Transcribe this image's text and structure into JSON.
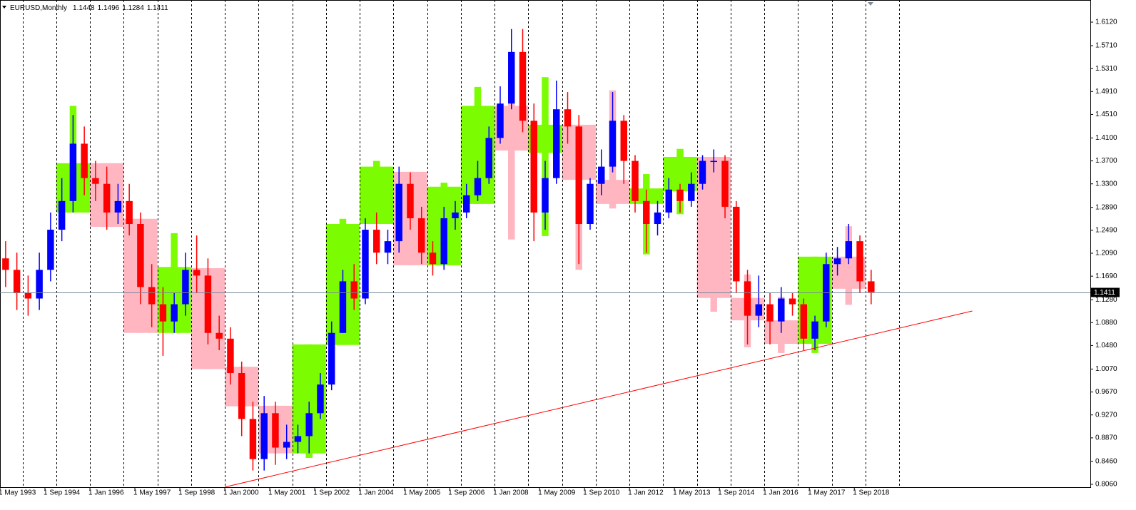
{
  "chart_data": {
    "type": "candlestick",
    "header": {
      "symbol": "EURUSD,Monthly",
      "open": 1.1448,
      "high": 1.1496,
      "low": 1.1284,
      "close": 1.1411
    },
    "current_price": 1.1411,
    "xlim": [
      "1 May 1993",
      "1 Sep 2025"
    ],
    "ylim": [
      0.801,
      1.6506
    ],
    "xticks": [
      "1 May 1993",
      "1 Sep 1994",
      "1 Jan 1996",
      "1 May 1997",
      "1 Sep 1998",
      "1 Jan 2000",
      "1 May 2001",
      "1 Sep 2002",
      "1 Jan 2004",
      "1 May 2005",
      "1 Sep 2006",
      "1 Jan 2008",
      "1 May 2009",
      "1 Sep 2010",
      "1 Jan 2012",
      "1 May 2013",
      "1 Sep 2014",
      "1 Jan 2016",
      "1 May 2017",
      "1 Sep 2018"
    ],
    "yticks": [
      {
        "value": 1.612,
        "label": "1.6120"
      },
      {
        "value": 1.571,
        "label": "1.5710"
      },
      {
        "value": 1.531,
        "label": "1.5310"
      },
      {
        "value": 1.491,
        "label": "1.4910"
      },
      {
        "value": 1.451,
        "label": "1.4510"
      },
      {
        "value": 1.41,
        "label": "1.4100"
      },
      {
        "value": 1.37,
        "label": "1.3700"
      },
      {
        "value": 1.33,
        "label": "1.3300"
      },
      {
        "value": 1.289,
        "label": "1.2890"
      },
      {
        "value": 1.249,
        "label": "1.2490"
      },
      {
        "value": 1.209,
        "label": "1.2090"
      },
      {
        "value": 1.169,
        "label": "1.1690"
      },
      {
        "value": 1.128,
        "label": "1.1280"
      },
      {
        "value": 1.088,
        "label": "1.0880"
      },
      {
        "value": 1.048,
        "label": "1.0480"
      },
      {
        "value": 1.007,
        "label": "1.0070"
      },
      {
        "value": 0.967,
        "label": "0.9670"
      },
      {
        "value": 0.927,
        "label": "0.9270"
      },
      {
        "value": 0.887,
        "label": "0.8870"
      },
      {
        "value": 0.846,
        "label": "0.8460"
      },
      {
        "value": 0.806,
        "label": "0.8060"
      }
    ],
    "period_separators": "yearly",
    "up_color": "#0000ff",
    "down_color": "#ff0000",
    "candles": {
      "x": [
        "1 May 1993",
        "1 Sep 1993",
        "1 Jan 1994",
        "1 May 1994",
        "1 Sep 1994",
        "1 Jan 1995",
        "1 May 1995",
        "1 Sep 1995",
        "1 Jan 1996",
        "1 May 1996",
        "1 Sep 1996",
        "1 Jan 1997",
        "1 May 1997",
        "1 Sep 1997",
        "1 Jan 1998",
        "1 May 1998",
        "1 Sep 1998",
        "1 Jan 1999",
        "1 May 1999",
        "1 Sep 1999",
        "1 Jan 2000",
        "1 May 2000",
        "1 Sep 2000",
        "1 Jan 2001",
        "1 May 2001",
        "1 Sep 2001",
        "1 Jan 2002",
        "1 May 2002",
        "1 Sep 2002",
        "1 Jan 2003",
        "1 May 2003",
        "1 Sep 2003",
        "1 Jan 2004",
        "1 May 2004",
        "1 Sep 2004",
        "1 Jan 2005",
        "1 May 2005",
        "1 Sep 2005",
        "1 Jan 2006",
        "1 May 2006",
        "1 Sep 2006",
        "1 Jan 2007",
        "1 May 2007",
        "1 Sep 2007",
        "1 Jan 2008",
        "1 May 2008",
        "1 Sep 2008",
        "1 Jan 2009",
        "1 May 2009",
        "1 Sep 2009",
        "1 Jan 2010",
        "1 May 2010",
        "1 Sep 2010",
        "1 Jan 2011",
        "1 May 2011",
        "1 Sep 2011",
        "1 Jan 2012",
        "1 May 2012",
        "1 Sep 2012",
        "1 Jan 2013",
        "1 May 2013",
        "1 Sep 2013",
        "1 Jan 2014",
        "1 May 2014",
        "1 Sep 2014",
        "1 Jan 2015",
        "1 May 2015",
        "1 Sep 2015",
        "1 Jan 2016",
        "1 May 2016",
        "1 Sep 2016",
        "1 Jan 2017",
        "1 May 2017",
        "1 Sep 2017",
        "1 Jan 2018",
        "1 May 2018",
        "1 Sep 2018",
        "1 Jan 2019"
      ],
      "open": [
        1.2,
        1.18,
        1.14,
        1.13,
        1.18,
        1.25,
        1.3,
        1.4,
        1.34,
        1.33,
        1.28,
        1.3,
        1.26,
        1.15,
        1.12,
        1.09,
        1.12,
        1.18,
        1.17,
        1.07,
        1.06,
        1.0,
        0.92,
        0.85,
        0.93,
        0.87,
        0.88,
        0.89,
        0.93,
        0.98,
        1.07,
        1.16,
        1.13,
        1.25,
        1.21,
        1.23,
        1.33,
        1.27,
        1.21,
        1.19,
        1.27,
        1.28,
        1.31,
        1.34,
        1.41,
        1.47,
        1.56,
        1.44,
        1.28,
        1.34,
        1.46,
        1.43,
        1.26,
        1.33,
        1.36,
        1.44,
        1.37,
        1.3,
        1.26,
        1.28,
        1.32,
        1.3,
        1.33,
        1.37,
        1.37,
        1.29,
        1.16,
        1.1,
        1.12,
        1.09,
        1.13,
        1.12,
        1.06,
        1.09,
        1.19,
        1.2,
        1.23,
        1.16
      ],
      "high": [
        1.23,
        1.21,
        1.17,
        1.21,
        1.28,
        1.34,
        1.45,
        1.43,
        1.37,
        1.36,
        1.33,
        1.33,
        1.28,
        1.19,
        1.15,
        1.14,
        1.21,
        1.24,
        1.2,
        1.1,
        1.08,
        1.02,
        0.95,
        0.96,
        0.95,
        0.91,
        0.91,
        0.95,
        1.0,
        1.09,
        1.18,
        1.19,
        1.27,
        1.28,
        1.25,
        1.36,
        1.35,
        1.29,
        1.23,
        1.29,
        1.3,
        1.33,
        1.37,
        1.43,
        1.5,
        1.6,
        1.6,
        1.47,
        1.37,
        1.51,
        1.49,
        1.45,
        1.34,
        1.39,
        1.49,
        1.45,
        1.38,
        1.32,
        1.3,
        1.34,
        1.33,
        1.35,
        1.38,
        1.39,
        1.38,
        1.3,
        1.18,
        1.17,
        1.14,
        1.15,
        1.14,
        1.13,
        1.1,
        1.21,
        1.22,
        1.26,
        1.24,
        1.18
      ],
      "low": [
        1.15,
        1.11,
        1.1,
        1.11,
        1.16,
        1.23,
        1.28,
        1.31,
        1.3,
        1.25,
        1.26,
        1.24,
        1.12,
        1.08,
        1.03,
        1.07,
        1.1,
        1.14,
        1.05,
        1.04,
        0.98,
        0.89,
        0.83,
        0.83,
        0.84,
        0.85,
        0.86,
        0.86,
        0.92,
        0.97,
        1.07,
        1.11,
        1.12,
        1.19,
        1.19,
        1.21,
        1.25,
        1.19,
        1.17,
        1.18,
        1.25,
        1.27,
        1.3,
        1.33,
        1.4,
        1.46,
        1.42,
        1.23,
        1.25,
        1.33,
        1.4,
        1.19,
        1.25,
        1.31,
        1.35,
        1.33,
        1.28,
        1.21,
        1.24,
        1.27,
        1.28,
        1.29,
        1.32,
        1.35,
        1.27,
        1.14,
        1.05,
        1.08,
        1.05,
        1.07,
        1.1,
        1.04,
        1.04,
        1.08,
        1.17,
        1.19,
        1.14,
        1.12
      ],
      "close": [
        1.18,
        1.14,
        1.13,
        1.18,
        1.25,
        1.3,
        1.4,
        1.34,
        1.33,
        1.28,
        1.3,
        1.26,
        1.15,
        1.12,
        1.09,
        1.12,
        1.18,
        1.17,
        1.07,
        1.06,
        1.0,
        0.92,
        0.85,
        0.93,
        0.87,
        0.88,
        0.89,
        0.93,
        0.98,
        1.07,
        1.16,
        1.13,
        1.25,
        1.21,
        1.23,
        1.33,
        1.27,
        1.21,
        1.19,
        1.27,
        1.28,
        1.31,
        1.34,
        1.41,
        1.47,
        1.56,
        1.44,
        1.28,
        1.34,
        1.46,
        1.43,
        1.26,
        1.33,
        1.36,
        1.44,
        1.37,
        1.3,
        1.26,
        1.28,
        1.32,
        1.3,
        1.33,
        1.37,
        1.37,
        1.29,
        1.16,
        1.1,
        1.12,
        1.09,
        1.13,
        1.12,
        1.06,
        1.09,
        1.19,
        1.2,
        1.23,
        1.16,
        1.1411
      ]
    },
    "yearly_boxes": {
      "up_color": "#7cfc00",
      "down_color": "#ffb6c1",
      "x": [
        "1 Jan 1995",
        "1 Jan 1996",
        "1 Jan 1997",
        "1 Jan 1998",
        "1 Jan 1999",
        "1 Jan 2000",
        "1 Jan 2001",
        "1 Jan 2002",
        "1 Jan 2003",
        "1 Jan 2004",
        "1 Jan 2005",
        "1 Jan 2006",
        "1 Jan 2007",
        "1 Jan 2008",
        "1 Jan 2009",
        "1 Jan 2010",
        "1 Jan 2011",
        "1 Jan 2012",
        "1 Jan 2013",
        "1 Jan 2014",
        "1 Jan 2015",
        "1 Jan 2016",
        "1 Jan 2017",
        "1 Jan 2018"
      ],
      "open": [
        1.28,
        1.366,
        1.269,
        1.07,
        1.183,
        1.011,
        0.943,
        0.86,
        1.049,
        1.26,
        1.351,
        1.188,
        1.295,
        1.466,
        1.384,
        1.433,
        1.337,
        1.295,
        1.317,
        1.377,
        1.131,
        1.092,
        1.051,
        1.203
      ],
      "high": [
        1.466,
        1.366,
        1.269,
        1.244,
        1.183,
        1.011,
        0.943,
        1.05,
        1.269,
        1.37,
        1.351,
        1.332,
        1.499,
        1.535,
        1.516,
        1.433,
        1.493,
        1.347,
        1.391,
        1.377,
        1.172,
        1.133,
        1.203,
        1.256
      ],
      "low": [
        1.28,
        1.255,
        1.07,
        1.07,
        1.007,
        0.942,
        0.86,
        0.852,
        1.049,
        1.26,
        1.188,
        1.188,
        1.295,
        1.233,
        1.239,
        1.18,
        1.287,
        1.207,
        1.277,
        1.107,
        1.045,
        1.035,
        1.035,
        1.119
      ],
      "close": [
        1.366,
        1.255,
        1.07,
        1.185,
        1.007,
        0.942,
        0.86,
        1.05,
        1.26,
        1.36,
        1.188,
        1.325,
        1.466,
        1.388,
        1.433,
        1.337,
        1.295,
        1.322,
        1.377,
        1.131,
        1.092,
        1.051,
        1.203,
        1.147
      ]
    },
    "trendline": {
      "color": "#ff0000",
      "x": [
        "1 Jan 2000",
        "1 Mar 2022"
      ],
      "values": [
        0.8012,
        1.1083
      ]
    }
  }
}
